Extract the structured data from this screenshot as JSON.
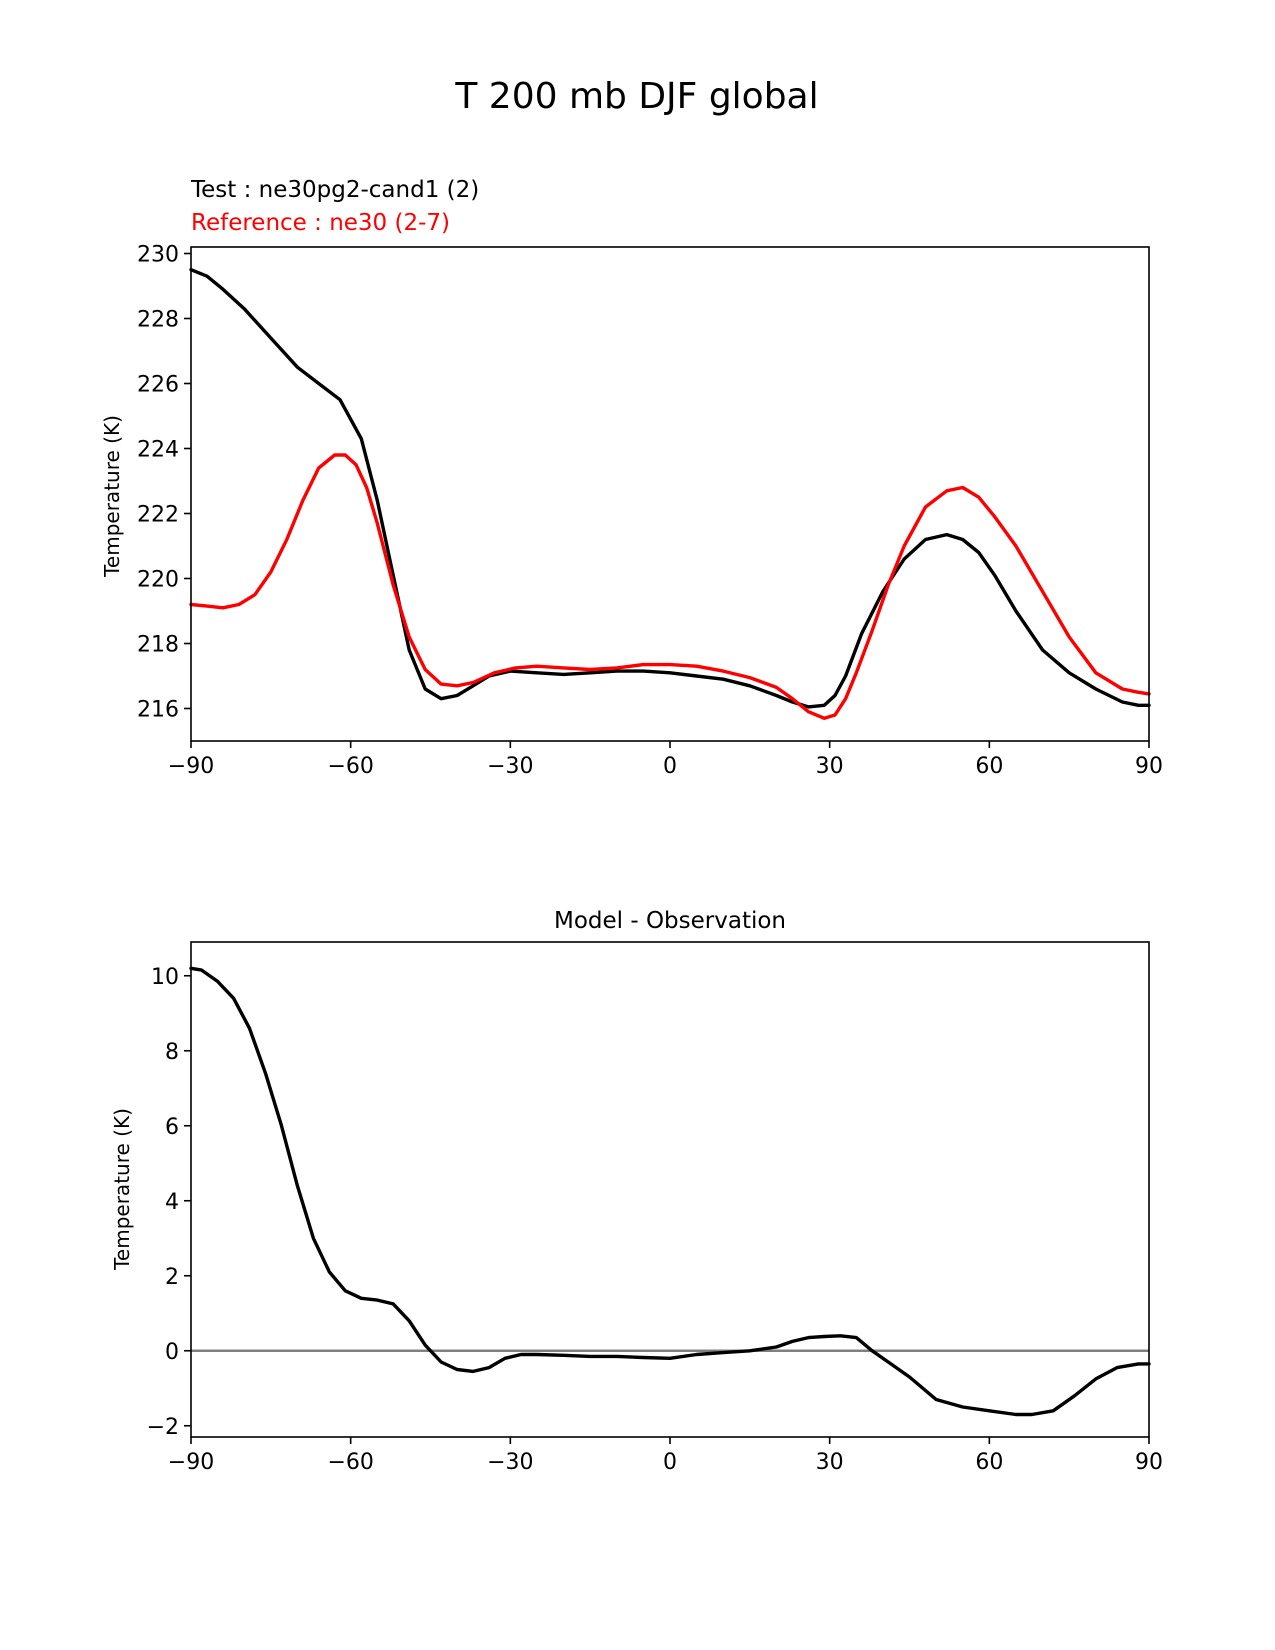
{
  "figure": {
    "title": "T 200 mb DJF global"
  },
  "colors": {
    "test": "#000000",
    "reference": "#ff0000",
    "zero_line": "#808080",
    "axes": "#000000",
    "background": "#ffffff"
  },
  "chart_data": [
    {
      "type": "line",
      "title_left": "Test : ne30pg2-cand1 (2)",
      "title_left_secondary": "Reference : ne30 (2-7)",
      "xlabel": "",
      "ylabel": "Temperature (K)",
      "xlim": [
        -90,
        90
      ],
      "ylim": [
        215,
        230.2
      ],
      "xticks": [
        -90,
        -60,
        -30,
        0,
        30,
        60,
        90
      ],
      "xtick_labels": [
        "−90",
        "−60",
        "−30",
        "0",
        "30",
        "60",
        "90"
      ],
      "yticks": [
        216,
        218,
        220,
        222,
        224,
        226,
        228,
        230
      ],
      "ytick_labels": [
        "216",
        "218",
        "220",
        "222",
        "224",
        "226",
        "228",
        "230"
      ],
      "grid": false,
      "series": [
        {
          "name": "Test : ne30pg2-cand1 (2)",
          "color": "#000000",
          "x": [
            -90,
            -87,
            -84,
            -80,
            -75,
            -70,
            -66,
            -62,
            -58,
            -55,
            -52,
            -49,
            -46,
            -43,
            -40,
            -37,
            -34,
            -30,
            -25,
            -20,
            -15,
            -10,
            -5,
            0,
            5,
            10,
            15,
            20,
            23,
            26,
            29,
            31,
            33,
            36,
            40,
            44,
            48,
            52,
            55,
            58,
            61,
            65,
            70,
            75,
            80,
            85,
            88,
            90
          ],
          "y": [
            229.5,
            229.3,
            228.9,
            228.3,
            227.4,
            226.5,
            226.0,
            225.5,
            224.3,
            222.4,
            220.1,
            217.8,
            216.6,
            216.3,
            216.4,
            216.7,
            217.0,
            217.15,
            217.1,
            217.05,
            217.1,
            217.15,
            217.15,
            217.1,
            217.0,
            216.9,
            216.7,
            216.4,
            216.2,
            216.05,
            216.1,
            216.4,
            217.0,
            218.3,
            219.6,
            220.6,
            221.2,
            221.35,
            221.2,
            220.8,
            220.1,
            219.0,
            217.8,
            217.1,
            216.6,
            216.2,
            216.1,
            216.1
          ]
        },
        {
          "name": "Reference : ne30 (2-7)",
          "color": "#ff0000",
          "x": [
            -90,
            -87,
            -84,
            -81,
            -78,
            -75,
            -72,
            -69,
            -66,
            -63,
            -61,
            -59,
            -57,
            -55,
            -52,
            -49,
            -46,
            -43,
            -40,
            -37,
            -33,
            -29,
            -25,
            -20,
            -15,
            -10,
            -5,
            0,
            5,
            10,
            15,
            20,
            23,
            26,
            29,
            31,
            33,
            35,
            38,
            41,
            44,
            48,
            52,
            55,
            58,
            61,
            65,
            70,
            75,
            80,
            85,
            88,
            90
          ],
          "y": [
            219.2,
            219.15,
            219.1,
            219.2,
            219.5,
            220.2,
            221.2,
            222.4,
            223.4,
            223.8,
            223.8,
            223.5,
            222.8,
            221.7,
            219.8,
            218.2,
            217.2,
            216.75,
            216.7,
            216.8,
            217.1,
            217.25,
            217.3,
            217.25,
            217.2,
            217.25,
            217.35,
            217.35,
            217.3,
            217.15,
            216.95,
            216.65,
            216.3,
            215.9,
            215.7,
            215.8,
            216.3,
            217.1,
            218.4,
            219.8,
            221.0,
            222.2,
            222.7,
            222.8,
            222.5,
            221.9,
            221.0,
            219.6,
            218.2,
            217.1,
            216.6,
            216.5,
            216.45
          ]
        }
      ]
    },
    {
      "type": "line",
      "title": "Model - Observation",
      "xlabel": "",
      "ylabel": "Temperature (K)",
      "xlim": [
        -90,
        90
      ],
      "ylim": [
        -2.3,
        10.9
      ],
      "xticks": [
        -90,
        -60,
        -30,
        0,
        30,
        60,
        90
      ],
      "xtick_labels": [
        "−90",
        "−60",
        "−30",
        "0",
        "30",
        "60",
        "90"
      ],
      "yticks": [
        -2,
        0,
        2,
        4,
        6,
        8,
        10
      ],
      "ytick_labels": [
        "−2",
        "0",
        "2",
        "4",
        "6",
        "8",
        "10"
      ],
      "grid": false,
      "zero_line": 0,
      "series": [
        {
          "name": "Model - Observation",
          "color": "#000000",
          "x": [
            -90,
            -88,
            -85,
            -82,
            -79,
            -76,
            -73,
            -70,
            -67,
            -64,
            -61,
            -58,
            -55,
            -52,
            -49,
            -46,
            -43,
            -40,
            -37,
            -34,
            -31,
            -28,
            -25,
            -20,
            -15,
            -10,
            -5,
            0,
            5,
            10,
            15,
            20,
            23,
            26,
            29,
            32,
            35,
            38,
            41,
            45,
            50,
            55,
            60,
            65,
            68,
            72,
            76,
            80,
            84,
            88,
            90
          ],
          "y": [
            10.2,
            10.15,
            9.85,
            9.4,
            8.6,
            7.4,
            6.0,
            4.4,
            3.0,
            2.1,
            1.6,
            1.4,
            1.35,
            1.25,
            0.8,
            0.15,
            -0.3,
            -0.5,
            -0.55,
            -0.45,
            -0.2,
            -0.1,
            -0.1,
            -0.12,
            -0.15,
            -0.15,
            -0.18,
            -0.2,
            -0.1,
            -0.05,
            0.0,
            0.1,
            0.25,
            0.35,
            0.38,
            0.4,
            0.35,
            0.0,
            -0.3,
            -0.7,
            -1.3,
            -1.5,
            -1.6,
            -1.7,
            -1.7,
            -1.6,
            -1.2,
            -0.75,
            -0.45,
            -0.35,
            -0.35
          ]
        }
      ]
    }
  ]
}
